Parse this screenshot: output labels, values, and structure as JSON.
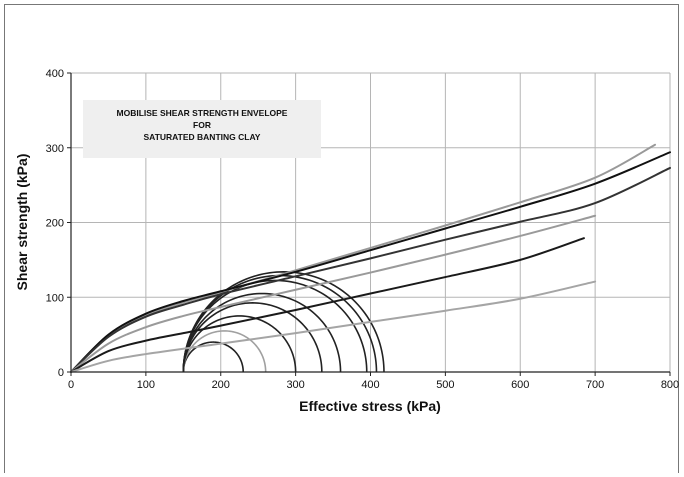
{
  "chart_data": {
    "type": "line",
    "title": "",
    "annotation": [
      "MOBILISE SHEAR STRENGTH ENVELOPE",
      "FOR",
      "SATURATED BANTING CLAY"
    ],
    "xlabel": "Effective stress (kPa)",
    "ylabel": "Shear strength (kPa)",
    "xlim": [
      0,
      800
    ],
    "ylim": [
      0,
      400
    ],
    "xticks": [
      0,
      100,
      200,
      300,
      400,
      500,
      600,
      700,
      800
    ],
    "yticks": [
      0,
      100,
      200,
      300,
      400
    ],
    "grid": true,
    "legend": "none",
    "series": [
      {
        "color": "#999999",
        "x": [
          0,
          50,
          100,
          150,
          200,
          300,
          400,
          500,
          600,
          700,
          780
        ],
        "y": [
          0,
          48,
          76,
          93,
          107,
          136,
          166,
          196,
          227,
          260,
          304
        ]
      },
      {
        "color": "#111111",
        "x": [
          0,
          50,
          100,
          150,
          200,
          300,
          400,
          500,
          600,
          700,
          800
        ],
        "y": [
          0,
          50,
          78,
          95,
          108,
          134,
          163,
          192,
          221,
          252,
          294
        ]
      },
      {
        "color": "#333333",
        "x": [
          0,
          50,
          100,
          150,
          200,
          300,
          400,
          500,
          600,
          700,
          800
        ],
        "y": [
          0,
          47,
          74,
          90,
          104,
          128,
          152,
          177,
          201,
          226,
          273
        ]
      },
      {
        "color": "#9a9a9a",
        "x": [
          0,
          50,
          100,
          150,
          200,
          300,
          400,
          500,
          600,
          700
        ],
        "y": [
          0,
          38,
          60,
          75,
          87,
          110,
          133,
          157,
          182,
          209
        ]
      },
      {
        "color": "#1a1a1a",
        "x": [
          0,
          50,
          100,
          150,
          200,
          300,
          400,
          500,
          600,
          685
        ],
        "y": [
          0,
          28,
          42,
          52,
          62,
          83,
          105,
          127,
          150,
          179
        ]
      },
      {
        "color": "#a5a5a5",
        "x": [
          0,
          50,
          100,
          200,
          300,
          400,
          500,
          600,
          700
        ],
        "y": [
          0,
          15,
          24,
          38,
          52,
          67,
          82,
          98,
          121
        ]
      }
    ],
    "mohr_circles": [
      {
        "s3": 150,
        "s1": 230,
        "color": "#222222"
      },
      {
        "s3": 150,
        "s1": 260,
        "color": "#a0a0a0"
      },
      {
        "s3": 150,
        "s1": 300,
        "color": "#222222"
      },
      {
        "s3": 150,
        "s1": 335,
        "color": "#222222"
      },
      {
        "s3": 150,
        "s1": 360,
        "color": "#222222"
      },
      {
        "s3": 150,
        "s1": 395,
        "color": "#222222"
      },
      {
        "s3": 150,
        "s1": 408,
        "color": "#222222"
      },
      {
        "s3": 150,
        "s1": 418,
        "color": "#222222"
      }
    ]
  }
}
